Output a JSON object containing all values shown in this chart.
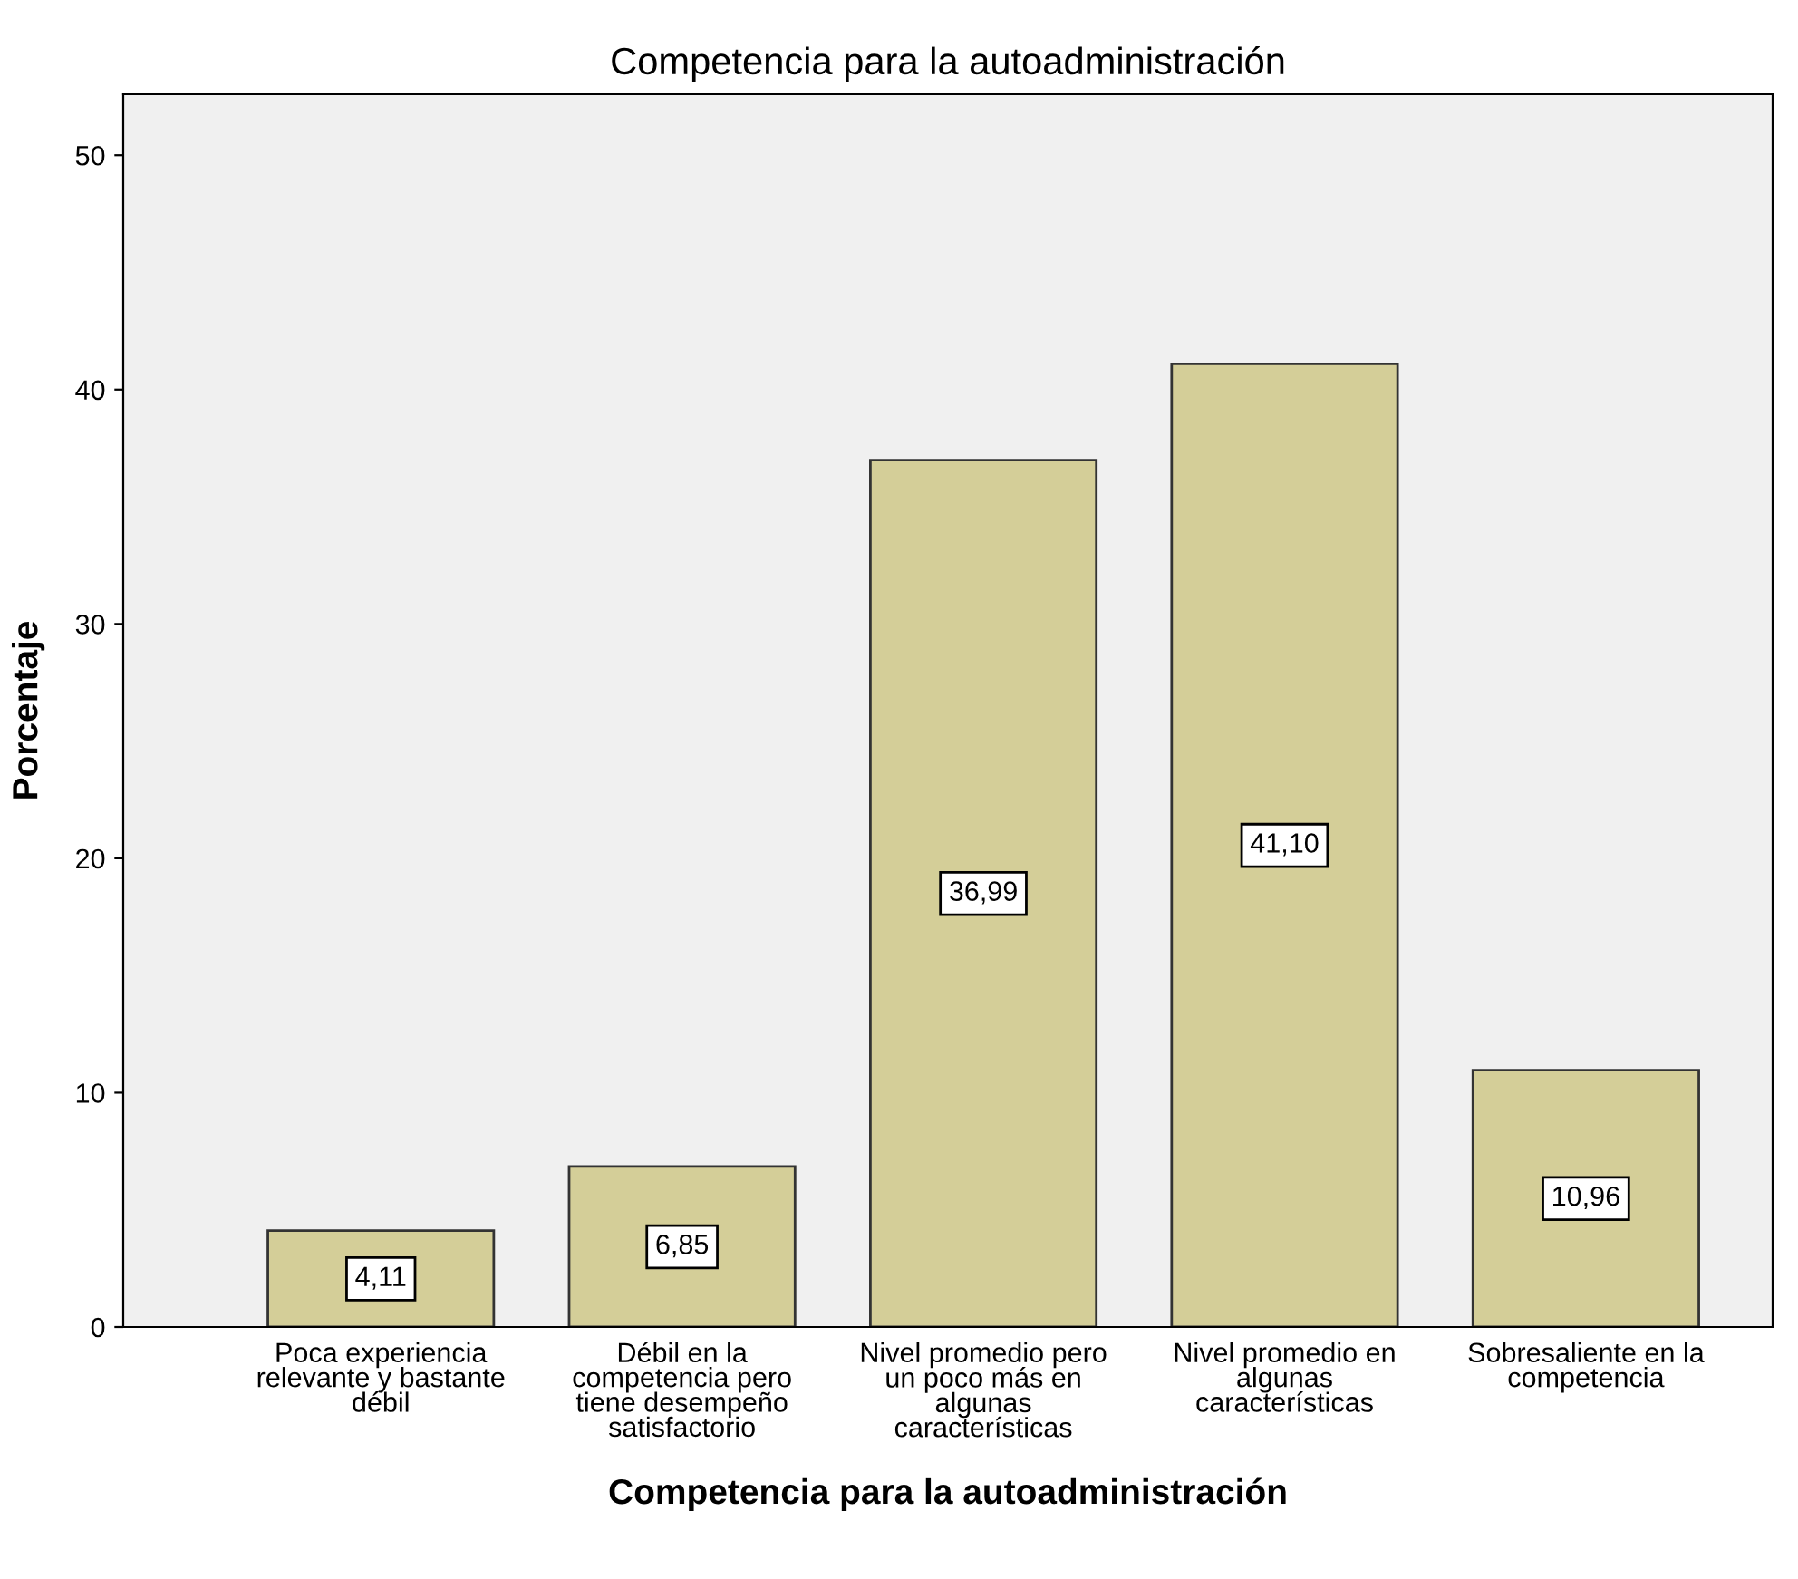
{
  "chart_data": {
    "type": "bar",
    "title": "Competencia para la autoadministración",
    "xlabel": "Competencia para la autoadministración",
    "ylabel": "Porcentaje",
    "categories": [
      "Poca experiencia\nrelevante y bastante\ndébil",
      "Débil en la\ncompetencia pero\ntiene desempeño\nsatisfactorio",
      "Nivel promedio pero\nun poco más en\nalgunas\ncaracterísticas",
      "Nivel promedio en\nalgunas\ncaracterísticas",
      "Sobresaliente en la\ncompetencia"
    ],
    "values": [
      4.11,
      6.85,
      36.99,
      41.1,
      10.96
    ],
    "value_labels": [
      "4,11",
      "6,85",
      "36,99",
      "41,10",
      "10,96"
    ],
    "color": "#d4ce98",
    "ylim": [
      0,
      52.6
    ],
    "yticks": [
      0,
      10,
      20,
      30,
      40,
      50
    ],
    "grid": false
  }
}
